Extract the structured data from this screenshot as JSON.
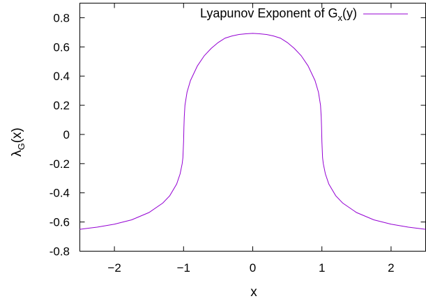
{
  "chart_data": {
    "type": "line",
    "xlabel": "x",
    "ylabel_main": "λ",
    "ylabel_sub": "G",
    "ylabel_tail": "(x)",
    "xlim": [
      -2.5,
      2.5
    ],
    "ylim": [
      -0.8,
      0.9
    ],
    "xticks": [
      -2,
      -1,
      0,
      1,
      2
    ],
    "xtick_labels": [
      "−2",
      "−1",
      "0",
      "1",
      "2"
    ],
    "yticks": [
      0.8,
      0.6,
      0.4,
      0.2,
      0,
      -0.2,
      -0.4,
      -0.6,
      -0.8
    ],
    "ytick_labels": [
      "0.8",
      "0.6",
      "0.4",
      "0.2",
      "0",
      "-0.2",
      "-0.4",
      "-0.6",
      "-0.8"
    ],
    "grid": false,
    "legend_position": "top-right",
    "series": [
      {
        "name_main": "Lyapunov Exponent of G",
        "name_sub": "x",
        "name_tail": "(y)",
        "color": "#9400d3",
        "x": [
          -2.5,
          -2.25,
          -2.0,
          -1.75,
          -1.5,
          -1.3,
          -1.2,
          -1.1,
          -1.05,
          -1.02,
          -1.01,
          -1.0,
          -0.995,
          -0.99,
          -0.98,
          -0.95,
          -0.9,
          -0.8,
          -0.7,
          -0.6,
          -0.5,
          -0.4,
          -0.3,
          -0.2,
          -0.1,
          0,
          0.1,
          0.2,
          0.3,
          0.4,
          0.5,
          0.6,
          0.7,
          0.8,
          0.9,
          0.95,
          0.98,
          0.99,
          0.995,
          1.0,
          1.01,
          1.02,
          1.05,
          1.1,
          1.2,
          1.3,
          1.5,
          1.75,
          2.0,
          2.25,
          2.5
        ],
        "y": [
          -0.65,
          -0.635,
          -0.615,
          -0.585,
          -0.535,
          -0.47,
          -0.42,
          -0.34,
          -0.27,
          -0.2,
          -0.16,
          -0.05,
          0.05,
          0.12,
          0.2,
          0.29,
          0.37,
          0.47,
          0.54,
          0.59,
          0.63,
          0.66,
          0.675,
          0.685,
          0.69,
          0.693,
          0.69,
          0.685,
          0.675,
          0.66,
          0.63,
          0.59,
          0.54,
          0.47,
          0.37,
          0.29,
          0.2,
          0.12,
          0.05,
          -0.05,
          -0.16,
          -0.2,
          -0.27,
          -0.34,
          -0.42,
          -0.47,
          -0.535,
          -0.585,
          -0.615,
          -0.635,
          -0.65
        ]
      }
    ]
  }
}
